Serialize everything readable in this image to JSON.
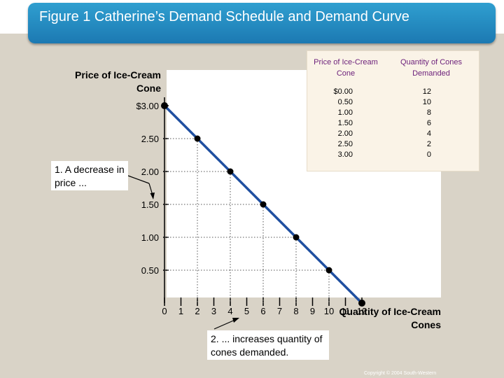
{
  "title": "Figure 1 Catherine’s Demand Schedule and Demand Curve",
  "chart_data": {
    "type": "line",
    "ylabel": "Price of Ice-Cream Cone",
    "xlabel": "Quantity of Ice-Cream Cones",
    "x_ticks": [
      "0",
      "1",
      "2",
      "3",
      "4",
      "5",
      "6",
      "7",
      "8",
      "9",
      "10",
      "11",
      "12"
    ],
    "y_ticks": [
      "0.50",
      "1.00",
      "1.50",
      "2.00",
      "2.50",
      "$3.00"
    ],
    "y_tick_values": [
      0.5,
      1.0,
      1.5,
      2.0,
      2.5,
      3.0
    ],
    "xlim": [
      0,
      12
    ],
    "ylim": [
      0,
      3.0
    ],
    "points": [
      {
        "x": 0,
        "y": 3.0
      },
      {
        "x": 2,
        "y": 2.5
      },
      {
        "x": 4,
        "y": 2.0
      },
      {
        "x": 6,
        "y": 1.5
      },
      {
        "x": 8,
        "y": 1.0
      },
      {
        "x": 10,
        "y": 0.5
      },
      {
        "x": 12,
        "y": 0.0
      }
    ],
    "line_color": "#1f4fa0"
  },
  "schedule": {
    "headers": [
      "Price of Ice-Cream Cone",
      "Quantity of Cones Demanded"
    ],
    "rows": [
      [
        "$0.00",
        "12"
      ],
      [
        "0.50",
        "10"
      ],
      [
        "1.00",
        "8"
      ],
      [
        "1.50",
        "6"
      ],
      [
        "2.00",
        "4"
      ],
      [
        "2.50",
        "2"
      ],
      [
        "3.00",
        "0"
      ]
    ]
  },
  "annotations": {
    "note1": "1. A decrease in price ...",
    "note2": "2. ... increases quantity of cones demanded."
  },
  "copyright": "Copyright © 2004 South-Western"
}
